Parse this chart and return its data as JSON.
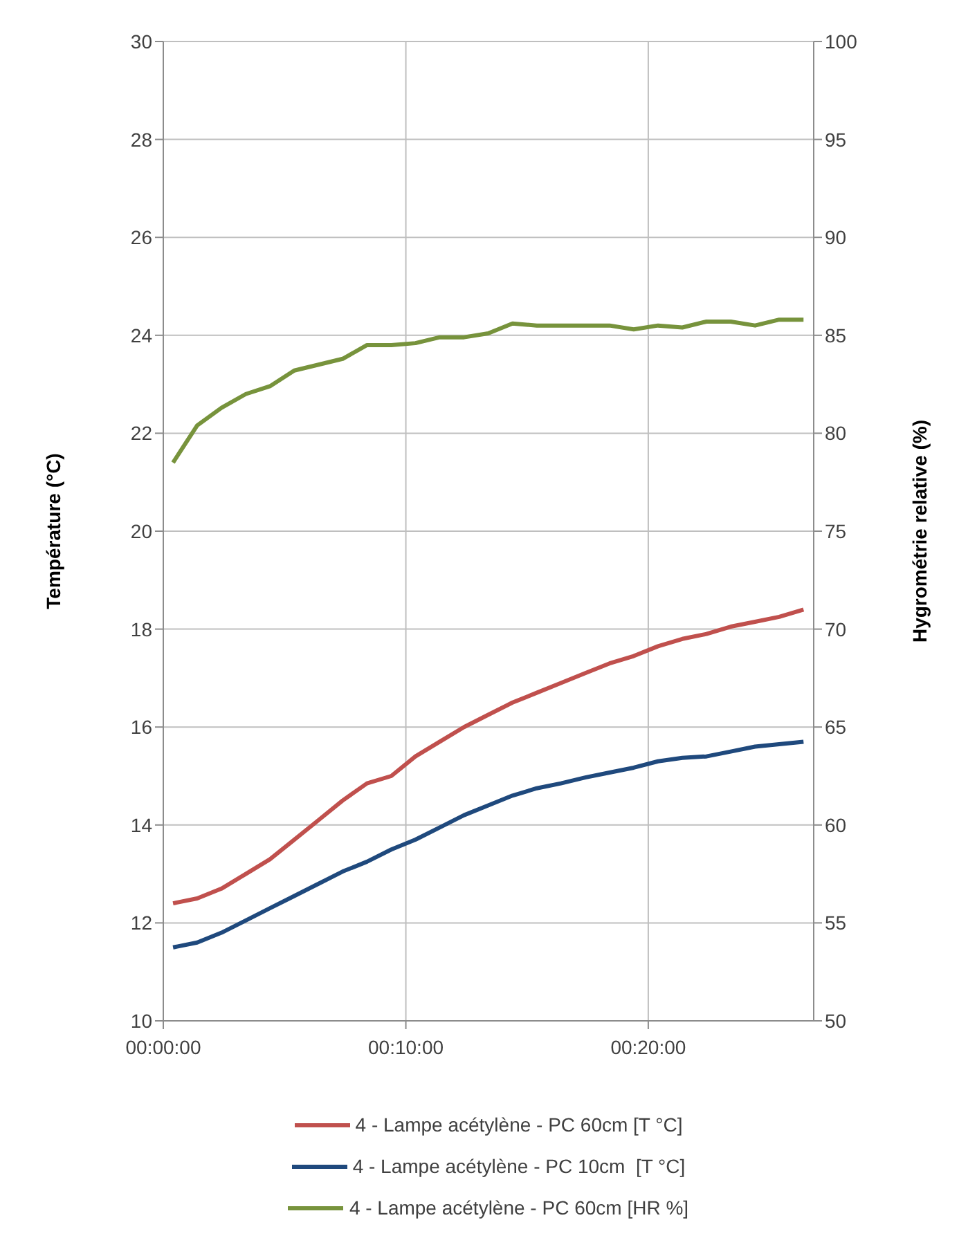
{
  "chart_data": {
    "type": "line",
    "ylabel": "Température (°C)",
    "y2label": "Hygrométrie relative (%)",
    "x": [
      0.0067,
      0.0233,
      0.04,
      0.0567,
      0.0733,
      0.09,
      0.1067,
      0.1233,
      0.14,
      0.1567,
      0.1733,
      0.19,
      0.2067,
      0.2233,
      0.24,
      0.2567,
      0.2733,
      0.29,
      0.3067,
      0.3233,
      0.34,
      0.3567,
      0.3733,
      0.39,
      0.4067,
      0.4233,
      0.44
    ],
    "xlim": [
      0,
      0.447
    ],
    "xticks": [
      {
        "value": 0,
        "label": "00:00:00"
      },
      {
        "value": 0.1667,
        "label": "00:10:00"
      },
      {
        "value": 0.3333,
        "label": "00:20:00"
      }
    ],
    "ylim": [
      10,
      30
    ],
    "yticks": [
      10,
      12,
      14,
      16,
      18,
      20,
      22,
      24,
      26,
      28,
      30
    ],
    "y2lim": [
      50,
      100
    ],
    "y2ticks": [
      50,
      55,
      60,
      65,
      70,
      75,
      80,
      85,
      90,
      95,
      100
    ],
    "grid": true,
    "legend": "bottom",
    "marker": "none",
    "line_style": "solid",
    "series": [
      {
        "name": "4 - Lampe acétylène - PC 60cm [T °C]",
        "color": "#c0504d",
        "values": [
          12.4,
          12.5,
          12.7,
          13.0,
          13.3,
          13.7,
          14.1,
          14.5,
          14.85,
          15.0,
          15.4,
          15.7,
          16.0,
          16.25,
          16.5,
          16.7,
          16.9,
          17.1,
          17.3,
          17.45,
          17.65,
          17.8,
          17.9,
          18.05,
          18.15,
          18.25,
          18.4
        ]
      },
      {
        "name": "4 - Lampe acétylène - PC 10cm  [T °C]",
        "color": "#1f497d",
        "values": [
          11.5,
          11.6,
          11.8,
          12.05,
          12.3,
          12.55,
          12.8,
          13.05,
          13.25,
          13.5,
          13.7,
          13.95,
          14.2,
          14.4,
          14.6,
          14.75,
          14.85,
          14.97,
          15.07,
          15.17,
          15.3,
          15.37,
          15.4,
          15.5,
          15.6,
          15.65,
          15.7
        ]
      },
      {
        "name": "4 - Lampe acétylène - PC 60cm [HR %]",
        "color": "#77933c",
        "axis": "y2",
        "values": [
          78.5,
          80.4,
          81.3,
          82.0,
          82.4,
          83.2,
          83.5,
          83.8,
          84.5,
          84.5,
          84.6,
          84.9,
          84.9,
          85.1,
          85.6,
          85.5,
          85.5,
          85.5,
          85.5,
          85.3,
          85.5,
          85.4,
          85.7,
          85.7,
          85.5,
          85.8,
          85.8
        ]
      }
    ]
  }
}
